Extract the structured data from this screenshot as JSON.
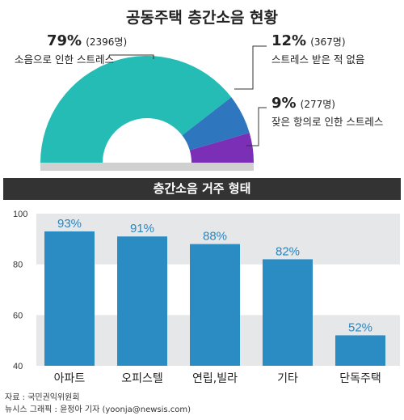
{
  "title": "공동주택 층간소음 현황",
  "colors": {
    "teal": "#26bcb6",
    "blue": "#2e77be",
    "purple": "#7b2eb6",
    "bar": "#2b8cc3",
    "band": "#e6e7e8",
    "header_bg": "#333333"
  },
  "pie": {
    "slices": [
      {
        "pct": "79%",
        "count": "(2396명)",
        "desc": "소음으로 인한 스트레스",
        "value": 79,
        "color": "#26bcb6"
      },
      {
        "pct": "12%",
        "count": "(367명)",
        "desc": "스트레스 받은 적 없음",
        "value": 12,
        "color": "#2e77be"
      },
      {
        "pct": "9%",
        "count": "(277명)",
        "desc": "잦은 항의로 인한 스트레스",
        "value": 9,
        "color": "#7b2eb6"
      }
    ]
  },
  "bar_section": {
    "title": "층간소음 거주 형태"
  },
  "chart_data": [
    {
      "type": "pie",
      "title": "공동주택 층간소음 현황",
      "categories": [
        "소음으로 인한 스트레스",
        "스트레스 받은 적 없음",
        "잦은 항의로 인한 스트레스"
      ],
      "values": [
        79,
        12,
        9
      ],
      "counts": [
        2396,
        367,
        277
      ],
      "unit": "%"
    },
    {
      "type": "bar",
      "title": "층간소음 거주 형태",
      "categories": [
        "아파트",
        "오피스텔",
        "연립,빌라",
        "기타",
        "단독주택"
      ],
      "values": [
        93,
        91,
        88,
        82,
        52
      ],
      "value_labels": [
        "93%",
        "91%",
        "88%",
        "82%",
        "52%"
      ],
      "yticks": [
        40,
        60,
        80,
        100
      ],
      "ylim": [
        40,
        100
      ],
      "grid": "alternating bands"
    }
  ],
  "source": {
    "line1": "자료 : 국민권익위원회",
    "line2": "뉴시스 그래픽 : 윤정아 기자 (yoonja@newsis.com)"
  }
}
